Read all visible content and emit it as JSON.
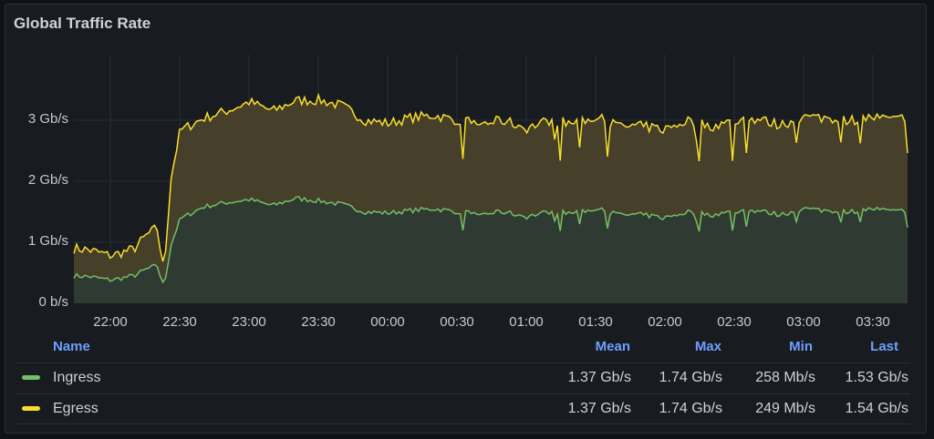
{
  "panel": {
    "title": "Global Traffic Rate"
  },
  "colors": {
    "ingress": "#73bf69",
    "egress": "#fade2a",
    "ingress_fill": "#2f3a32",
    "egress_fill": "#463f29",
    "grid": "#2a2d33",
    "header": "#6e9fff"
  },
  "legend": {
    "columns": [
      "Name",
      "Mean",
      "Max",
      "Min",
      "Last"
    ],
    "rows": [
      {
        "name": "Ingress",
        "color": "#73bf69",
        "mean": "1.37 Gb/s",
        "max": "1.74 Gb/s",
        "min": "258 Mb/s",
        "last": "1.53 Gb/s"
      },
      {
        "name": "Egress",
        "color": "#fade2a",
        "mean": "1.37 Gb/s",
        "max": "1.74 Gb/s",
        "min": "249 Mb/s",
        "last": "1.54 Gb/s"
      }
    ]
  },
  "chart_data": {
    "type": "area",
    "stacked": true,
    "title": "Global Traffic Rate",
    "xlabel": "",
    "ylabel": "",
    "y_ticks": [
      "0 b/s",
      "1 Gb/s",
      "2 Gb/s",
      "3 Gb/s"
    ],
    "x_ticks": [
      "22:00",
      "22:30",
      "23:00",
      "23:30",
      "00:00",
      "00:30",
      "01:00",
      "01:30",
      "02:00",
      "02:30",
      "03:00",
      "03:30"
    ],
    "ylim_gbps": [
      0,
      3.9
    ],
    "grid": true,
    "legend_position": "bottom",
    "x": [
      "21:44",
      "21:50",
      "22:00",
      "22:10",
      "22:15",
      "22:20",
      "22:23",
      "22:26",
      "22:30",
      "22:40",
      "22:50",
      "23:00",
      "23:10",
      "23:20",
      "23:30",
      "23:40",
      "23:50",
      "00:00",
      "00:10",
      "00:20",
      "00:30",
      "00:40",
      "00:50",
      "01:00",
      "01:10",
      "01:20",
      "01:30",
      "01:40",
      "01:50",
      "02:00",
      "02:10",
      "02:20",
      "02:30",
      "02:40",
      "02:50",
      "03:00",
      "03:10",
      "03:20",
      "03:30",
      "03:40",
      "03:45"
    ],
    "series": [
      {
        "name": "Ingress",
        "values": [
          0.45,
          0.44,
          0.38,
          0.45,
          0.55,
          0.62,
          0.26,
          0.95,
          1.38,
          1.58,
          1.65,
          1.7,
          1.6,
          1.72,
          1.68,
          1.62,
          1.5,
          1.48,
          1.52,
          1.55,
          1.5,
          1.46,
          1.5,
          1.42,
          1.5,
          1.48,
          1.55,
          1.45,
          1.45,
          1.4,
          1.5,
          1.45,
          1.5,
          1.52,
          1.45,
          1.55,
          1.52,
          1.5,
          1.55,
          1.5,
          1.53
        ]
      },
      {
        "name": "Egress",
        "values": [
          0.45,
          0.44,
          0.4,
          0.44,
          0.55,
          0.62,
          0.25,
          1.1,
          1.45,
          1.45,
          1.5,
          1.6,
          1.55,
          1.6,
          1.65,
          1.62,
          1.5,
          1.47,
          1.52,
          1.53,
          1.5,
          1.48,
          1.5,
          1.45,
          1.5,
          1.47,
          1.5,
          1.45,
          1.45,
          1.45,
          1.5,
          1.45,
          1.48,
          1.5,
          1.47,
          1.5,
          1.52,
          1.5,
          1.5,
          1.5,
          1.54
        ]
      }
    ]
  }
}
